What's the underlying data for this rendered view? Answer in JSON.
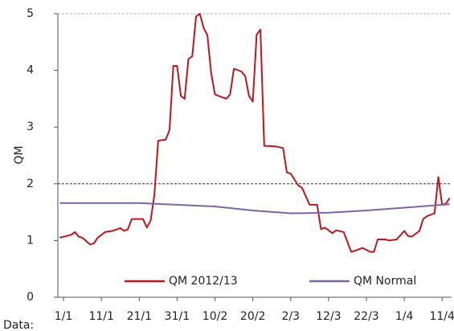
{
  "chart_data": {
    "type": "line",
    "ylabel": "QM",
    "xlabel": "Data:",
    "xlim": [
      -1.5,
      102.5
    ],
    "ylim": [
      0,
      5
    ],
    "yticks": [
      0,
      1,
      2,
      3,
      4,
      5
    ],
    "xticks": [
      {
        "value": 0,
        "label": "1/1"
      },
      {
        "value": 10,
        "label": "11/1"
      },
      {
        "value": 20,
        "label": "21/1"
      },
      {
        "value": 30,
        "label": "31/1"
      },
      {
        "value": 40,
        "label": "10/2"
      },
      {
        "value": 50,
        "label": "20/2"
      },
      {
        "value": 60,
        "label": "2/3"
      },
      {
        "value": 70,
        "label": "12/3"
      },
      {
        "value": 80,
        "label": "22/3"
      },
      {
        "value": 90,
        "label": "1/4"
      },
      {
        "value": 100,
        "label": "11/4"
      }
    ],
    "hlines": [
      2
    ],
    "legend": "bottom",
    "series": [
      {
        "name": "QM 2012/13",
        "color": "#c0161b",
        "x": [
          -1,
          2,
          3,
          4,
          5,
          7,
          8,
          9,
          11,
          13,
          15,
          16,
          17,
          18,
          21,
          22,
          23,
          24,
          25,
          27,
          28,
          29,
          30,
          31,
          32,
          33,
          34,
          35,
          36,
          37,
          38,
          39,
          40,
          41,
          43,
          44,
          45,
          47,
          48,
          49,
          50,
          51,
          52,
          53,
          56,
          58,
          59,
          60,
          62,
          63,
          64,
          65,
          67,
          68,
          69,
          71,
          72,
          74,
          76,
          77,
          79,
          81,
          82,
          83,
          85,
          86,
          88,
          90,
          91,
          92,
          94,
          95,
          96,
          98,
          99,
          100,
          101,
          102
        ],
        "values": [
          1.05,
          1.1,
          1.15,
          1.07,
          1.05,
          0.93,
          0.95,
          1.05,
          1.15,
          1.17,
          1.22,
          1.17,
          1.2,
          1.38,
          1.38,
          1.23,
          1.35,
          1.8,
          2.76,
          2.78,
          2.95,
          4.08,
          4.08,
          3.55,
          3.5,
          4.2,
          4.25,
          4.95,
          5.0,
          4.75,
          4.62,
          3.95,
          3.58,
          3.55,
          3.5,
          3.58,
          4.03,
          3.98,
          3.9,
          3.55,
          3.45,
          4.63,
          4.72,
          2.67,
          2.66,
          2.63,
          2.2,
          2.18,
          1.97,
          1.93,
          1.78,
          1.63,
          1.63,
          1.2,
          1.23,
          1.13,
          1.18,
          1.15,
          0.8,
          0.82,
          0.87,
          0.8,
          0.8,
          1.02,
          1.02,
          1.0,
          1.02,
          1.17,
          1.08,
          1.07,
          1.17,
          1.38,
          1.43,
          1.48,
          2.12,
          1.63,
          1.65,
          1.75
        ]
      },
      {
        "name": "QM Normal",
        "color": "#8064a2",
        "x": [
          -1,
          10,
          20,
          30,
          40,
          50,
          60,
          70,
          80,
          90,
          102
        ],
        "values": [
          1.66,
          1.66,
          1.66,
          1.63,
          1.6,
          1.53,
          1.48,
          1.49,
          1.53,
          1.58,
          1.64
        ]
      }
    ]
  }
}
